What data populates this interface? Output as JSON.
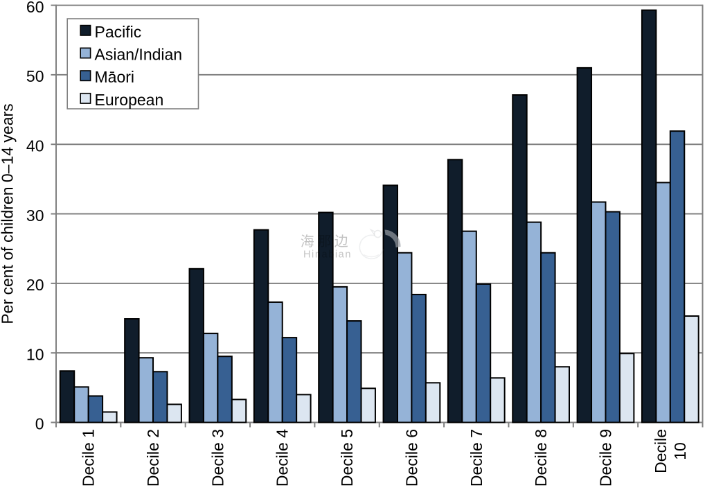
{
  "chart_data": {
    "type": "bar",
    "title": "",
    "xlabel": "",
    "ylabel": "Per cent of children 0–14 years",
    "ylim": [
      0,
      60
    ],
    "yticks": [
      0,
      10,
      20,
      30,
      40,
      50,
      60
    ],
    "grid": "horizontal",
    "legend_position": "top-left-inside",
    "categories": [
      "Decile 1",
      "Decile 2",
      "Decile 3",
      "Decile 4",
      "Decile 5",
      "Decile 6",
      "Decile 7",
      "Decile 8",
      "Decile 9",
      "Decile 10"
    ],
    "series": [
      {
        "name": "Pacific",
        "color": "#101D2B",
        "values": [
          7.4,
          14.9,
          22.1,
          27.7,
          30.2,
          34.1,
          37.8,
          47.1,
          51.0,
          59.3
        ]
      },
      {
        "name": "Asian/Indian",
        "color": "#95B3D7",
        "values": [
          5.1,
          9.3,
          12.8,
          17.3,
          19.5,
          24.4,
          27.5,
          28.8,
          31.7,
          34.5
        ]
      },
      {
        "name": "Māori",
        "color": "#376092",
        "values": [
          3.8,
          7.3,
          9.5,
          12.2,
          14.6,
          18.4,
          19.9,
          24.4,
          30.3,
          41.9
        ]
      },
      {
        "name": "European",
        "color": "#DCE6F1",
        "values": [
          1.5,
          2.6,
          3.3,
          4.0,
          4.9,
          5.7,
          6.4,
          8.0,
          9.9,
          15.3
        ]
      }
    ],
    "bar_border_color": "#000000",
    "axis_color": "#808080",
    "gridline_color": "#808080"
  },
  "watermark": {
    "cjk_text": "海那边",
    "latin_text": "Hinabian"
  }
}
